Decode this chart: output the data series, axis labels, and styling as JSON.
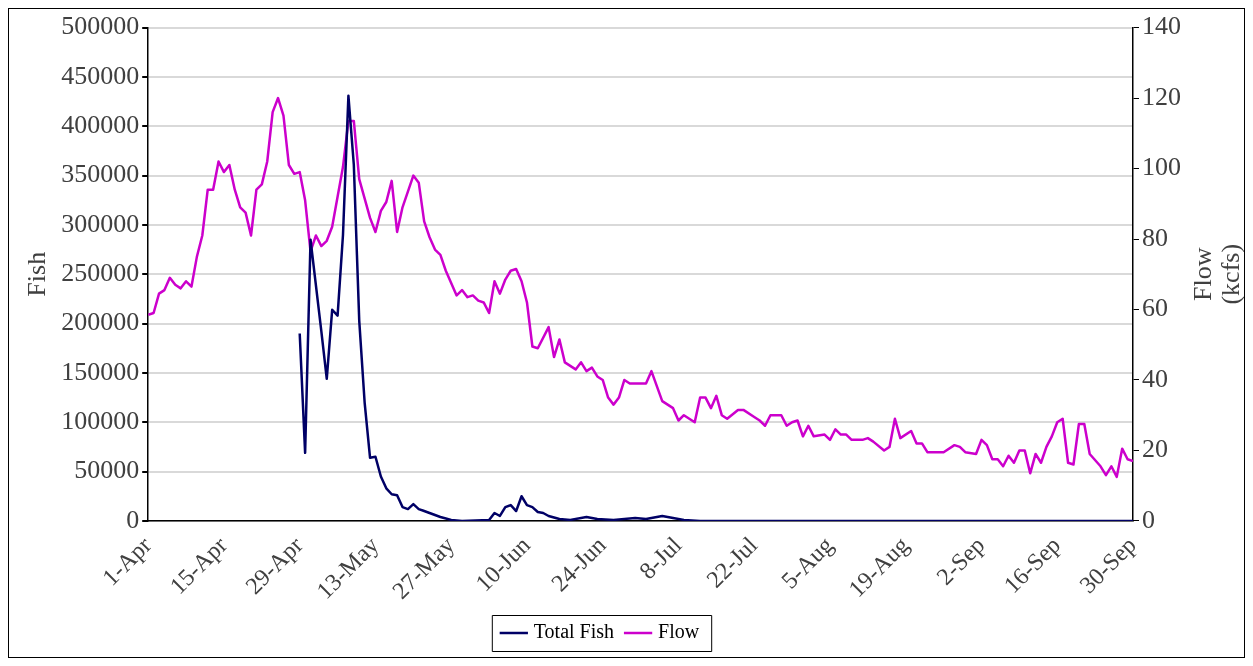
{
  "chart_data": {
    "type": "line",
    "ylabel": "Fish",
    "y2label": "Flow (kcfs)",
    "xlim": [
      "--04-01",
      "--09-30"
    ],
    "xticks": [
      {
        "value": "--04-01",
        "label": "1-Apr"
      },
      {
        "value": "--04-15",
        "label": "15-Apr"
      },
      {
        "value": "--04-29",
        "label": "29-Apr"
      },
      {
        "value": "--05-13",
        "label": "13-May"
      },
      {
        "value": "--05-27",
        "label": "27-May"
      },
      {
        "value": "--06-10",
        "label": "10-Jun"
      },
      {
        "value": "--06-24",
        "label": "24-Jun"
      },
      {
        "value": "--07-08",
        "label": "8-Jul"
      },
      {
        "value": "--07-22",
        "label": "22-Jul"
      },
      {
        "value": "--08-05",
        "label": "5-Aug"
      },
      {
        "value": "--08-19",
        "label": "19-Aug"
      },
      {
        "value": "--09-02",
        "label": "2-Sep"
      },
      {
        "value": "--09-16",
        "label": "16-Sep"
      },
      {
        "value": "--09-30",
        "label": "30-Sep"
      }
    ],
    "ylim": [
      0,
      500000
    ],
    "yticks": [
      0,
      50000,
      100000,
      150000,
      200000,
      250000,
      300000,
      350000,
      400000,
      450000,
      500000
    ],
    "y2lim": [
      0,
      140
    ],
    "y2ticks": [
      0,
      20,
      40,
      60,
      80,
      100,
      120,
      140
    ],
    "grid": "y",
    "legend": "bottom",
    "series": [
      {
        "name": "Total Fish",
        "color": "#000066",
        "x": [
          "--04-29",
          "--04-30",
          "--05-01",
          "--05-03",
          "--05-04",
          "--05-05",
          "--05-06",
          "--05-07",
          "--05-08",
          "--05-09",
          "--05-10",
          "--05-11",
          "--05-12",
          "--05-13",
          "--05-14",
          "--05-15",
          "--05-16",
          "--05-17",
          "--05-18",
          "--05-19",
          "--05-20",
          "--05-21",
          "--05-22",
          "--05-23",
          "--05-25",
          "--05-27",
          "--05-29",
          "--06-03",
          "--06-04",
          "--06-05",
          "--06-06",
          "--06-07",
          "--06-08",
          "--06-09",
          "--06-10",
          "--06-11",
          "--06-12",
          "--06-13",
          "--06-14",
          "--06-16",
          "--06-18",
          "--06-21",
          "--06-23",
          "--06-26",
          "--06-30",
          "--07-02",
          "--07-05",
          "--07-07",
          "--07-09",
          "--07-12",
          "--09-30"
        ],
        "values": [
          190000,
          69000,
          285000,
          192000,
          144000,
          214000,
          208000,
          290000,
          431000,
          361000,
          203000,
          120000,
          64000,
          65000,
          45000,
          33000,
          27000,
          26000,
          14000,
          12000,
          17000,
          12000,
          10000,
          8000,
          4000,
          1000,
          0,
          1000,
          8000,
          5000,
          14000,
          16000,
          10000,
          25000,
          16000,
          14000,
          9000,
          8000,
          5000,
          2000,
          1000,
          4000,
          2000,
          1000,
          3000,
          2000,
          5000,
          3000,
          1000,
          0,
          0
        ]
      },
      {
        "name": "Flow",
        "color": "#cc00cc",
        "axis": "y2",
        "x": [
          "--04-01",
          "--04-02",
          "--04-03",
          "--04-04",
          "--04-05",
          "--04-06",
          "--04-07",
          "--04-08",
          "--04-09",
          "--04-10",
          "--04-11",
          "--04-12",
          "--04-13",
          "--04-14",
          "--04-15",
          "--04-16",
          "--04-17",
          "--04-18",
          "--04-19",
          "--04-20",
          "--04-21",
          "--04-22",
          "--04-23",
          "--04-24",
          "--04-25",
          "--04-26",
          "--04-27",
          "--04-28",
          "--04-29",
          "--04-30",
          "--05-01",
          "--05-02",
          "--05-03",
          "--05-04",
          "--05-05",
          "--05-06",
          "--05-07",
          "--05-08",
          "--05-09",
          "--05-10",
          "--05-12",
          "--05-13",
          "--05-14",
          "--05-15",
          "--05-16",
          "--05-17",
          "--05-18",
          "--05-20",
          "--05-21",
          "--05-22",
          "--05-23",
          "--05-24",
          "--05-25",
          "--05-26",
          "--05-28",
          "--05-29",
          "--05-30",
          "--05-31",
          "--06-01",
          "--06-02",
          "--06-03",
          "--06-04",
          "--06-05",
          "--06-06",
          "--06-07",
          "--06-08",
          "--06-09",
          "--06-10",
          "--06-11",
          "--06-12",
          "--06-14",
          "--06-15",
          "--06-16",
          "--06-17",
          "--06-19",
          "--06-20",
          "--06-21",
          "--06-22",
          "--06-23",
          "--06-24",
          "--06-25",
          "--06-26",
          "--06-27",
          "--06-28",
          "--06-29",
          "--06-30",
          "--07-02",
          "--07-03",
          "--07-05",
          "--07-06",
          "--07-07",
          "--07-08",
          "--07-09",
          "--07-11",
          "--07-12",
          "--07-13",
          "--07-14",
          "--07-15",
          "--07-16",
          "--07-17",
          "--07-19",
          "--07-20",
          "--07-22",
          "--07-23",
          "--07-24",
          "--07-25",
          "--07-26",
          "--07-27",
          "--07-28",
          "--07-29",
          "--07-30",
          "--07-31",
          "--08-01",
          "--08-02",
          "--08-04",
          "--08-05",
          "--08-06",
          "--08-07",
          "--08-08",
          "--08-09",
          "--08-11",
          "--08-12",
          "--08-13",
          "--08-15",
          "--08-16",
          "--08-17",
          "--08-18",
          "--08-20",
          "--08-21",
          "--08-22",
          "--08-23",
          "--08-26",
          "--08-28",
          "--08-29",
          "--08-30",
          "--09-01",
          "--09-02",
          "--09-03",
          "--09-04",
          "--09-05",
          "--09-06",
          "--09-07",
          "--09-08",
          "--09-09",
          "--09-10",
          "--09-11",
          "--09-12",
          "--09-13",
          "--09-14",
          "--09-15",
          "--09-16",
          "--09-17",
          "--09-18",
          "--09-19",
          "--09-20",
          "--09-21",
          "--09-22",
          "--09-24",
          "--09-25",
          "--09-26",
          "--09-27",
          "--09-28",
          "--09-29",
          "--09-30"
        ],
        "values": [
          58.5,
          59,
          64.5,
          65.5,
          69,
          67,
          66,
          68,
          66.5,
          75,
          81,
          94,
          94,
          102,
          99,
          101,
          94,
          89,
          87.5,
          81,
          94,
          95.5,
          102,
          116,
          120,
          115,
          101,
          98.5,
          99,
          91,
          76.5,
          81,
          78,
          79.5,
          83.5,
          92,
          100.5,
          113.5,
          113.5,
          97,
          86,
          82,
          88,
          90.5,
          96.5,
          82,
          89,
          98,
          96,
          85,
          80.5,
          77,
          75.5,
          71,
          64,
          65.5,
          63.5,
          64,
          62.5,
          62,
          59,
          68,
          64.5,
          68.5,
          71,
          71.5,
          68,
          62,
          49.5,
          49,
          55,
          46.5,
          51.5,
          45,
          43,
          45,
          42.5,
          43.5,
          41,
          40,
          35,
          33,
          35,
          40,
          39,
          39,
          39,
          42.5,
          34,
          33,
          32,
          28.5,
          30,
          28,
          35,
          35,
          32,
          35.5,
          30,
          29,
          31.5,
          31.5,
          29.5,
          28.5,
          27,
          30,
          30,
          30,
          27,
          28,
          28.5,
          24,
          27,
          24,
          24.5,
          23,
          26,
          24.5,
          24.5,
          23,
          23,
          23.5,
          22.5,
          20,
          21,
          29,
          23.5,
          25.5,
          22,
          22,
          19.5,
          19.5,
          21.5,
          21,
          19.5,
          19,
          23,
          21.5,
          17.5,
          17.5,
          15.5,
          18.5,
          16.5,
          20,
          20,
          13.5,
          19,
          16.5,
          21,
          24,
          28,
          29,
          16.5,
          16,
          27.5,
          27.5,
          19,
          15.5,
          13,
          15.5,
          12.5,
          20.5,
          17.5,
          17
        ]
      }
    ]
  }
}
